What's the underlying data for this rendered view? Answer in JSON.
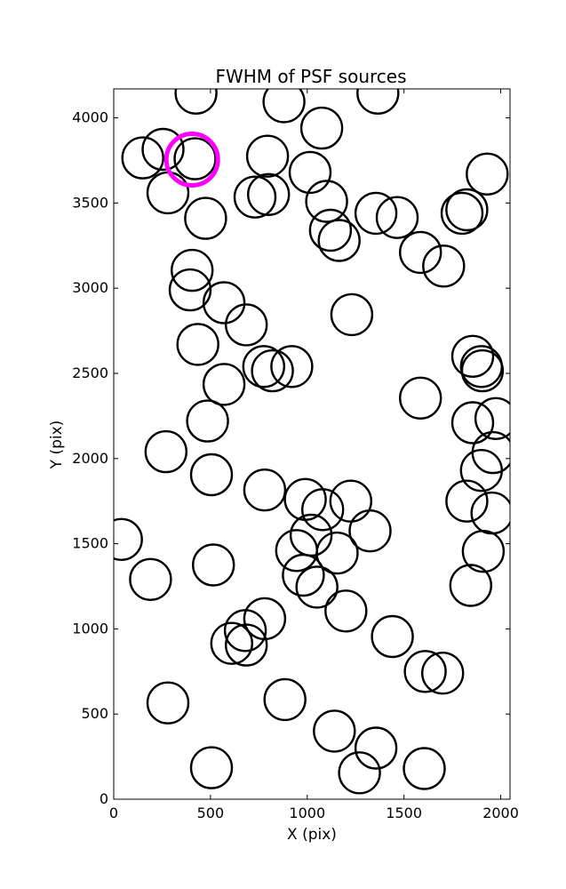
{
  "chart_data": {
    "type": "scatter",
    "title": "FWHM of PSF sources",
    "xlabel": "X (pix)",
    "ylabel": "Y (pix)",
    "xlim": [
      0,
      2048
    ],
    "ylim": [
      0,
      4170
    ],
    "xticks": [
      0,
      500,
      1000,
      1500,
      2000
    ],
    "yticks": [
      0,
      500,
      1000,
      1500,
      2000,
      2500,
      3000,
      3500,
      4000
    ],
    "grid": false,
    "marker": "open circle",
    "marker_color": "#000000",
    "highlight_color": "#ff00ff",
    "points": [
      {
        "x": 425,
        "y": 4145
      },
      {
        "x": 880,
        "y": 4095
      },
      {
        "x": 1365,
        "y": 4145
      },
      {
        "x": 1075,
        "y": 3940
      },
      {
        "x": 150,
        "y": 3765
      },
      {
        "x": 255,
        "y": 3815
      },
      {
        "x": 420,
        "y": 3760
      },
      {
        "x": 795,
        "y": 3775
      },
      {
        "x": 1015,
        "y": 3680
      },
      {
        "x": 1930,
        "y": 3670
      },
      {
        "x": 280,
        "y": 3560
      },
      {
        "x": 475,
        "y": 3410
      },
      {
        "x": 730,
        "y": 3535
      },
      {
        "x": 800,
        "y": 3550
      },
      {
        "x": 1100,
        "y": 3510
      },
      {
        "x": 1120,
        "y": 3340
      },
      {
        "x": 1165,
        "y": 3280
      },
      {
        "x": 1355,
        "y": 3440
      },
      {
        "x": 1465,
        "y": 3415
      },
      {
        "x": 1585,
        "y": 3210
      },
      {
        "x": 1705,
        "y": 3130
      },
      {
        "x": 1800,
        "y": 3440
      },
      {
        "x": 1825,
        "y": 3460
      },
      {
        "x": 405,
        "y": 3105
      },
      {
        "x": 395,
        "y": 2990
      },
      {
        "x": 570,
        "y": 2915
      },
      {
        "x": 685,
        "y": 2785
      },
      {
        "x": 1230,
        "y": 2845
      },
      {
        "x": 435,
        "y": 2670
      },
      {
        "x": 570,
        "y": 2435
      },
      {
        "x": 775,
        "y": 2540
      },
      {
        "x": 820,
        "y": 2515
      },
      {
        "x": 920,
        "y": 2540
      },
      {
        "x": 1855,
        "y": 2600
      },
      {
        "x": 1900,
        "y": 2540
      },
      {
        "x": 1905,
        "y": 2515
      },
      {
        "x": 1585,
        "y": 2355
      },
      {
        "x": 485,
        "y": 2220
      },
      {
        "x": 270,
        "y": 2040
      },
      {
        "x": 1855,
        "y": 2210
      },
      {
        "x": 1975,
        "y": 2235
      },
      {
        "x": 1960,
        "y": 2035
      },
      {
        "x": 505,
        "y": 1905
      },
      {
        "x": 780,
        "y": 1815
      },
      {
        "x": 1900,
        "y": 1930
      },
      {
        "x": 990,
        "y": 1760
      },
      {
        "x": 1080,
        "y": 1700
      },
      {
        "x": 1225,
        "y": 1750
      },
      {
        "x": 1825,
        "y": 1750
      },
      {
        "x": 1955,
        "y": 1680
      },
      {
        "x": 40,
        "y": 1525
      },
      {
        "x": 1325,
        "y": 1575
      },
      {
        "x": 1020,
        "y": 1550
      },
      {
        "x": 945,
        "y": 1460
      },
      {
        "x": 1155,
        "y": 1445
      },
      {
        "x": 515,
        "y": 1375
      },
      {
        "x": 1910,
        "y": 1455
      },
      {
        "x": 190,
        "y": 1290
      },
      {
        "x": 980,
        "y": 1315
      },
      {
        "x": 1050,
        "y": 1245
      },
      {
        "x": 1845,
        "y": 1255
      },
      {
        "x": 1200,
        "y": 1105
      },
      {
        "x": 780,
        "y": 1060
      },
      {
        "x": 680,
        "y": 990
      },
      {
        "x": 610,
        "y": 915
      },
      {
        "x": 685,
        "y": 905
      },
      {
        "x": 1440,
        "y": 955
      },
      {
        "x": 1610,
        "y": 750
      },
      {
        "x": 1700,
        "y": 740
      },
      {
        "x": 280,
        "y": 565
      },
      {
        "x": 885,
        "y": 585
      },
      {
        "x": 1140,
        "y": 400
      },
      {
        "x": 1355,
        "y": 300
      },
      {
        "x": 505,
        "y": 185
      },
      {
        "x": 1270,
        "y": 155
      },
      {
        "x": 1605,
        "y": 180
      }
    ],
    "highlight_points": [
      {
        "x": 405,
        "y": 3755
      }
    ]
  }
}
